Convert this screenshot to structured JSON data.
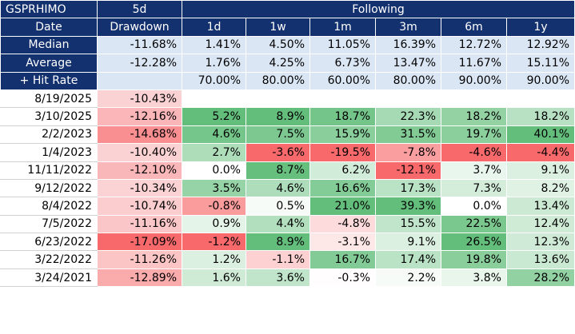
{
  "header": {
    "ticker": "GSPRHIMO",
    "col1_top": "5d",
    "following": "Following",
    "date_label": "Date",
    "col1_bottom": "Drawdown",
    "periods": [
      "1d",
      "1w",
      "1m",
      "3m",
      "6m",
      "1y"
    ]
  },
  "stats": [
    {
      "label": "Median",
      "drawdown": "-11.68%",
      "values": [
        "1.41%",
        "4.50%",
        "11.05%",
        "16.39%",
        "12.72%",
        "12.92%"
      ]
    },
    {
      "label": "Average",
      "drawdown": "-12.28%",
      "values": [
        "1.76%",
        "4.25%",
        "6.73%",
        "13.47%",
        "11.67%",
        "15.11%"
      ]
    },
    {
      "label": "+ Hit Rate",
      "drawdown": "",
      "values": [
        "70.00%",
        "80.00%",
        "60.00%",
        "80.00%",
        "90.00%",
        "90.00%"
      ]
    }
  ],
  "rows": [
    {
      "date": "8/19/2025",
      "drawdown": "-10.43%",
      "values": [
        "",
        "",
        "",
        "",
        "",
        ""
      ]
    },
    {
      "date": "3/10/2025",
      "drawdown": "-12.16%",
      "values": [
        "5.2%",
        "8.9%",
        "18.7%",
        "22.3%",
        "18.2%",
        "18.2%"
      ]
    },
    {
      "date": "2/2/2023",
      "drawdown": "-14.68%",
      "values": [
        "4.6%",
        "7.5%",
        "15.9%",
        "31.5%",
        "19.7%",
        "40.1%"
      ]
    },
    {
      "date": "1/4/2023",
      "drawdown": "-10.40%",
      "values": [
        "2.7%",
        "-3.6%",
        "-19.5%",
        "-7.8%",
        "-4.6%",
        "-4.4%"
      ]
    },
    {
      "date": "11/11/2022",
      "drawdown": "-12.10%",
      "values": [
        "0.0%",
        "8.7%",
        "6.2%",
        "-12.1%",
        "3.7%",
        "9.1%"
      ]
    },
    {
      "date": "9/12/2022",
      "drawdown": "-10.34%",
      "values": [
        "3.5%",
        "4.6%",
        "16.6%",
        "17.3%",
        "7.3%",
        "8.2%"
      ]
    },
    {
      "date": "8/4/2022",
      "drawdown": "-10.74%",
      "values": [
        "-0.8%",
        "0.5%",
        "21.0%",
        "39.3%",
        "0.0%",
        "13.4%"
      ]
    },
    {
      "date": "7/5/2022",
      "drawdown": "-11.16%",
      "values": [
        "0.9%",
        "4.4%",
        "-4.8%",
        "15.5%",
        "22.5%",
        "12.4%"
      ]
    },
    {
      "date": "6/23/2022",
      "drawdown": "-17.09%",
      "values": [
        "-1.2%",
        "8.9%",
        "-3.1%",
        "9.1%",
        "26.5%",
        "12.3%"
      ]
    },
    {
      "date": "3/22/2022",
      "drawdown": "-11.26%",
      "values": [
        "1.2%",
        "-1.1%",
        "16.7%",
        "17.4%",
        "19.8%",
        "13.6%"
      ]
    },
    {
      "date": "3/24/2021",
      "drawdown": "-12.89%",
      "values": [
        "1.6%",
        "3.6%",
        "-0.3%",
        "2.2%",
        "3.8%",
        "28.2%"
      ]
    }
  ],
  "colors": {
    "header_bg": "#14316f",
    "stat_bg": "#dbe6f4",
    "neg_extreme": "#f8696b",
    "pos_extreme": "#63be7b",
    "mid": "#ffffff"
  }
}
